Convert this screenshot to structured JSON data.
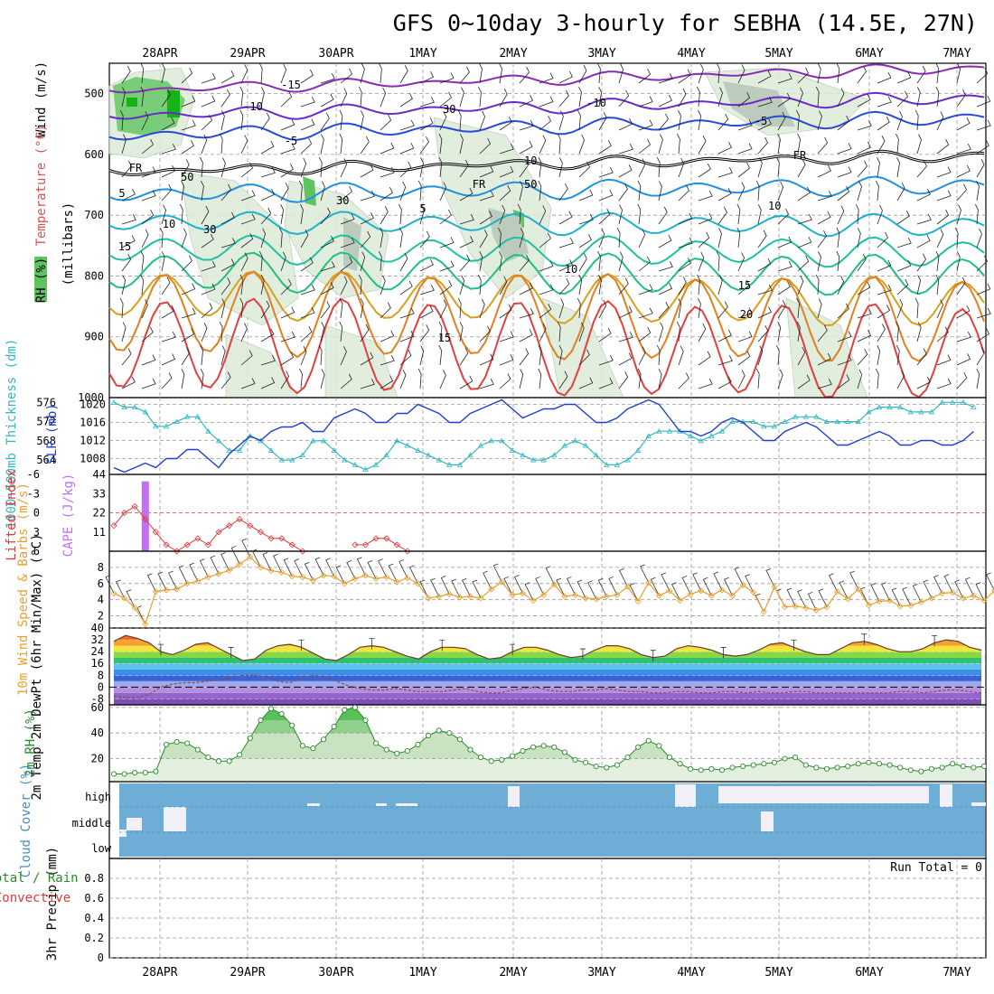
{
  "title": "GFS 0~10day 3-hourly for SEBHA (14.5E, 27N)",
  "run_total": "Run Total = 0",
  "colors": {
    "grid": "#999999",
    "rh_green": "#5fc45f",
    "thickness": "#34b8c0",
    "slp": "#1f3fcf",
    "lifted": "#e03a3a",
    "cape": "#c070f0",
    "wind": "#e8a030",
    "rh2m": "#2a8a2a",
    "cloud": "#6eaed6"
  },
  "chart_data": [
    {
      "type": "line",
      "panel": "upper-air",
      "ylabel_parts": [
        "Wind (m/s)",
        "Temperature (°C)",
        "RH (%)"
      ],
      "ylabel2": "(millibars)",
      "yticks": [
        500,
        600,
        700,
        800,
        900,
        1000
      ],
      "ylim": [
        1000,
        450
      ],
      "x": [
        "28APR",
        "29APR",
        "30APR",
        "1MAY",
        "2MAY",
        "3MAY",
        "4MAY",
        "5MAY",
        "6MAY",
        "7MAY"
      ],
      "isotherm_labels": [
        "-15",
        "-10",
        "-5",
        "5",
        "10",
        "15",
        "20",
        "FR"
      ],
      "rh_labels": [
        "10",
        "30",
        "50"
      ]
    },
    {
      "type": "line",
      "panel": "thickness-slp",
      "ylabel_left": "1000~500mb Thickness (dm)",
      "ylabel_right": "SLP (mb)",
      "yticks_left": [
        564,
        568,
        572,
        576
      ],
      "yticks_right": [
        1008,
        1012,
        1016,
        1020
      ],
      "ylim_left": [
        561,
        577
      ],
      "ylim_right": [
        1004.5,
        1021.5
      ],
      "series": [
        {
          "name": "1000~500mb Thickness (dm)",
          "values": [
            576,
            575,
            575,
            574,
            571,
            571,
            572,
            573,
            573,
            570,
            568,
            566,
            566,
            569,
            568,
            566,
            564,
            564,
            565,
            568,
            568,
            566,
            564,
            563,
            562,
            563,
            565,
            568,
            567,
            566,
            565,
            564,
            563,
            563,
            565,
            567,
            568,
            568,
            566,
            565,
            564,
            564,
            565,
            567,
            568,
            567,
            565,
            563,
            563,
            564,
            566,
            569,
            570,
            570,
            570,
            569,
            568,
            569,
            570,
            572,
            572,
            572,
            571,
            571,
            572,
            573,
            573,
            573,
            572,
            572,
            572,
            572,
            574,
            575,
            575,
            575,
            574,
            574,
            574,
            576,
            576,
            576,
            575
          ]
        },
        {
          "name": "SLP (mb)",
          "values": [
            1006,
            1005,
            1006,
            1007,
            1006,
            1008,
            1008,
            1010,
            1010,
            1008,
            1006,
            1009,
            1011,
            1013,
            1012,
            1014,
            1015,
            1015,
            1016,
            1014,
            1014,
            1017,
            1018,
            1019,
            1018,
            1016,
            1016,
            1018,
            1018,
            1020,
            1019,
            1018,
            1016,
            1016,
            1018,
            1019,
            1020,
            1021,
            1019,
            1017,
            1018,
            1019,
            1019,
            1020,
            1020,
            1018,
            1016,
            1016,
            1017,
            1019,
            1020,
            1021,
            1020,
            1017,
            1014,
            1014,
            1013,
            1014,
            1016,
            1017,
            1016,
            1014,
            1012,
            1012,
            1014,
            1015,
            1016,
            1015,
            1013,
            1011,
            1011,
            1012,
            1013,
            1014,
            1013,
            1011,
            1011,
            1012,
            1012,
            1011,
            1011,
            1012,
            1014
          ]
        }
      ]
    },
    {
      "type": "line",
      "panel": "lifted-cape",
      "ylabel_left": "Lifted Index",
      "ylabel_right": "CAPE (J/kg)",
      "yticks_left": [
        "-6",
        "-3",
        "0",
        "3",
        "6"
      ],
      "yticks_right": [
        11,
        22,
        33,
        44
      ],
      "ylim_left": [
        -6,
        6
      ],
      "ylim_right": [
        0,
        44
      ],
      "series": [
        {
          "name": "Lifted Index",
          "values": [
            2,
            0,
            -1,
            1,
            3,
            5,
            6,
            5,
            4,
            5,
            3,
            2,
            1,
            2,
            3,
            4,
            4,
            5,
            6,
            null,
            null,
            null,
            null,
            5,
            5,
            4,
            4,
            5,
            6
          ]
        },
        {
          "name": "CAPE (J/kg)",
          "values": [
            0,
            0,
            40,
            0
          ]
        }
      ]
    },
    {
      "type": "line",
      "panel": "wind10m",
      "ylabel": "10m Wind Speed & Barbs (m/s)",
      "yticks": [
        2,
        4,
        6,
        8
      ],
      "ylim": [
        0.5,
        10
      ],
      "series": [
        {
          "name": "10m Wind Speed (m/s)",
          "values": [
            4.8,
            4.2,
            3.0,
            1.0,
            5.0,
            5.2,
            5.3,
            6.0,
            6.3,
            6.8,
            7.2,
            7.6,
            8.4,
            9.3,
            8.0,
            7.6,
            7.4,
            6.9,
            6.8,
            6.4,
            7.0,
            6.9,
            6.0,
            6.6,
            7.0,
            6.6,
            6.8,
            6.2,
            6.7,
            6.0,
            4.2,
            4.4,
            4.7,
            4.3,
            4.4,
            4.2,
            5.3,
            6.2,
            4.6,
            4.8,
            3.9,
            4.6,
            5.9,
            4.4,
            4.6,
            4.2,
            4.1,
            4.4,
            4.6,
            5.6,
            3.8,
            6.1,
            4.5,
            5.1,
            3.9,
            4.7,
            5.1,
            4.5,
            5.2,
            4.5,
            5.8,
            4.9,
            2.5,
            5.6,
            3.1,
            3.2,
            3.0,
            2.7,
            3.1,
            5.0,
            4.1,
            5.3,
            3.3,
            3.8,
            3.9,
            3.2,
            3.3,
            3.7,
            4.2,
            4.8,
            4.9,
            4.2,
            4.5,
            3.9,
            5.1,
            5.7
          ]
        }
      ]
    },
    {
      "type": "area",
      "panel": "temp2m",
      "ylabel": "2m Temp 2m DewPt (6hr Min/Max) (°C)",
      "yticks": [
        "-8",
        "0",
        "8",
        "16",
        "24",
        "32",
        "40"
      ],
      "ylim": [
        -12,
        40
      ],
      "series": [
        {
          "name": "2m Temp",
          "values": [
            31,
            35,
            33,
            30,
            24,
            22,
            25,
            29,
            30,
            26,
            22,
            18,
            19,
            25,
            28,
            29,
            27,
            23,
            19,
            18,
            22,
            27,
            28,
            27,
            24,
            21,
            19,
            24,
            27,
            27,
            26,
            22,
            19,
            20,
            24,
            27,
            27,
            25,
            22,
            20,
            21,
            25,
            28,
            28,
            26,
            22,
            20,
            21,
            26,
            28,
            27,
            25,
            22,
            21,
            22,
            25,
            29,
            30,
            27,
            24,
            22,
            22,
            26,
            30,
            31,
            29,
            26,
            24,
            24,
            26,
            30,
            32,
            31,
            27,
            25
          ]
        },
        {
          "name": "2m DewPt",
          "values": [
            -6,
            -7,
            -7,
            -5,
            0,
            2,
            3,
            3,
            4,
            5,
            6,
            8,
            8,
            7,
            4,
            3,
            6,
            8,
            7,
            4,
            1,
            -1,
            -2,
            -2,
            -1,
            -2,
            -3,
            -3,
            -3,
            -2,
            -1,
            -3,
            -4,
            -4,
            -2,
            -1,
            0,
            -2,
            -3,
            -3,
            -2,
            -2,
            -1,
            -2,
            -3,
            -3,
            -4,
            -4,
            -3,
            -3,
            -4,
            -4,
            -3,
            -3,
            -4,
            -3,
            -4,
            -4,
            -3,
            -3,
            -4,
            -4,
            -4,
            -4,
            -4,
            -4,
            -4,
            -3,
            -3,
            -4,
            -3,
            -2,
            -2,
            -3,
            -4
          ]
        }
      ]
    },
    {
      "type": "area",
      "panel": "rh2m",
      "ylabel": "2m RH (%)",
      "yticks": [
        20,
        40,
        60
      ],
      "ylim": [
        2,
        62
      ],
      "series": [
        {
          "name": "2m RH (%)",
          "values": [
            8,
            8,
            9,
            9,
            10,
            31,
            33,
            32,
            27,
            21,
            18,
            18,
            23,
            36,
            50,
            59,
            55,
            46,
            30,
            28,
            35,
            45,
            58,
            60,
            50,
            32,
            27,
            24,
            26,
            31,
            38,
            42,
            40,
            35,
            27,
            21,
            18,
            19,
            22,
            26,
            29,
            30,
            29,
            25,
            19,
            17,
            14,
            13,
            15,
            21,
            29,
            34,
            30,
            21,
            16,
            12,
            11,
            12,
            11,
            13,
            14,
            15,
            16,
            17,
            20,
            21,
            15,
            13,
            12,
            13,
            14,
            16,
            17,
            16,
            15,
            13,
            11,
            10,
            12,
            13,
            16,
            14,
            13,
            14
          ]
        }
      ]
    },
    {
      "type": "area",
      "panel": "cloud-cover",
      "ylabel": "Cloud Cover (%)",
      "ytick_labels": [
        "high",
        "middle",
        "low"
      ]
    },
    {
      "type": "bar",
      "panel": "precip",
      "ylabel": "3hr Precip (mm)",
      "ylabel_side": [
        "Total / Rain",
        "Convective"
      ],
      "yticks": [
        "0",
        "0.2",
        "0.4",
        "0.6",
        "0.8"
      ],
      "ylim": [
        0,
        1
      ],
      "series": [
        {
          "name": "Total",
          "values": []
        },
        {
          "name": "Convective",
          "values": []
        }
      ]
    }
  ]
}
